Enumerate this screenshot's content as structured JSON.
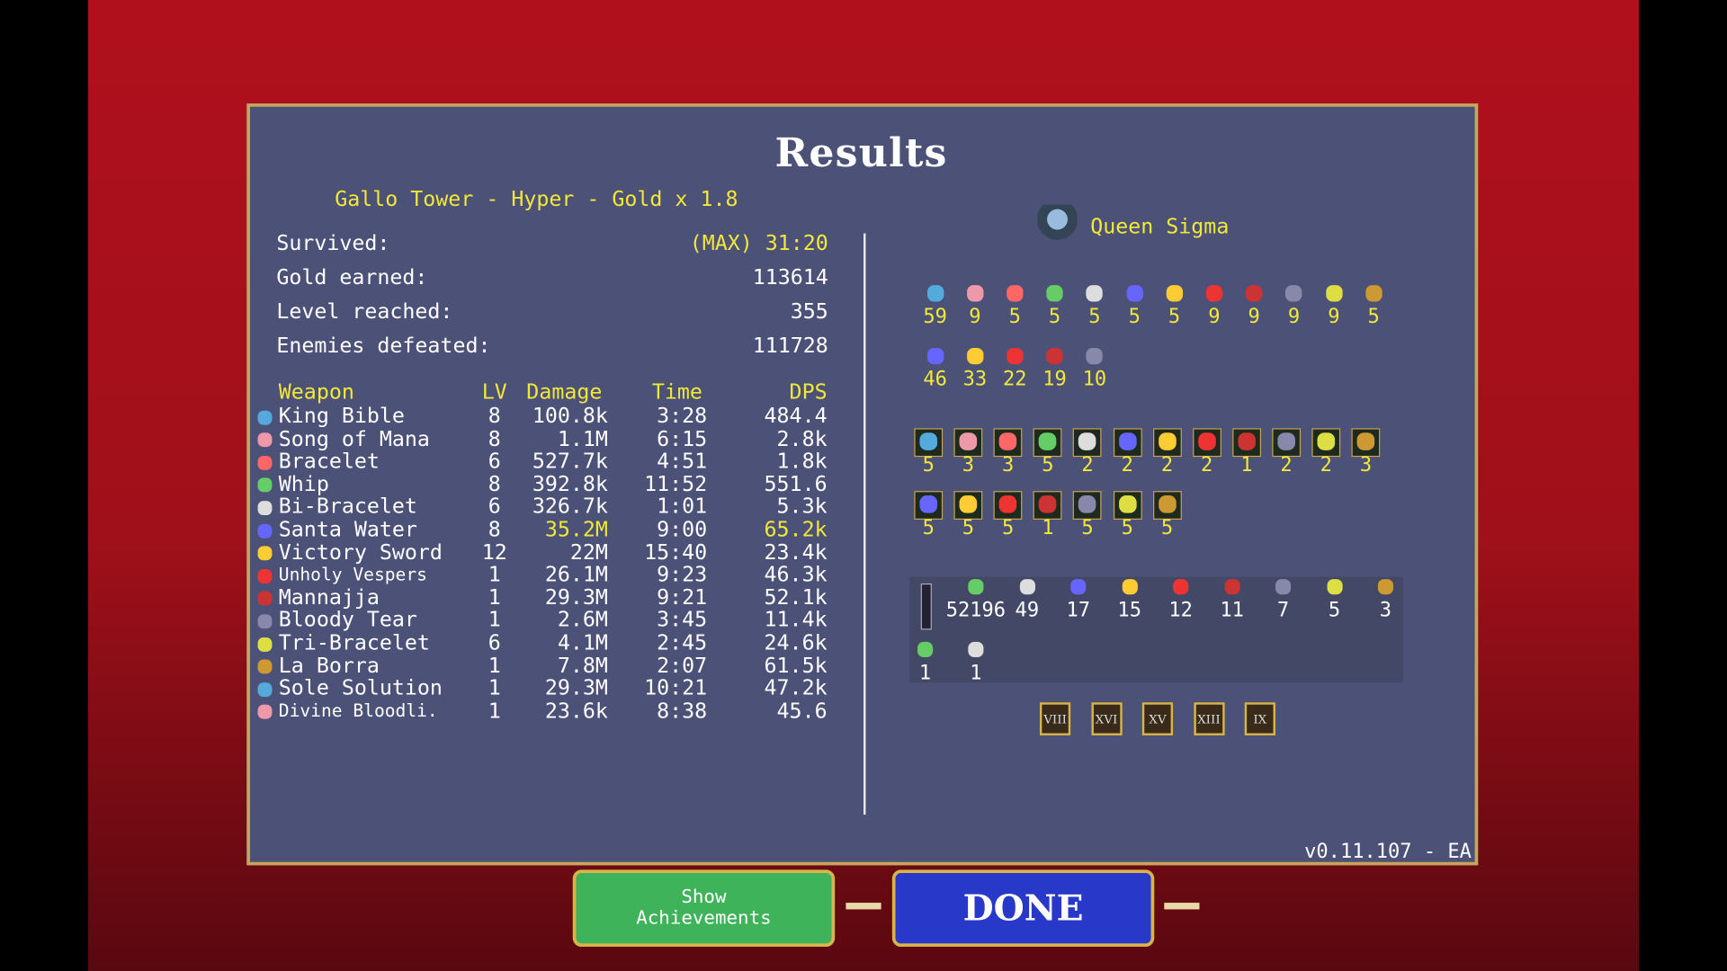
{
  "header": {
    "title": "Results",
    "subtitle": "Gallo Tower - Hyper - Gold x 1.8"
  },
  "stats": [
    {
      "label": "Survived:",
      "value": "(MAX) 31:20",
      "highlight": true
    },
    {
      "label": "Gold earned:",
      "value": "113614"
    },
    {
      "label": "Level reached:",
      "value": "355"
    },
    {
      "label": "Enemies defeated:",
      "value": "111728"
    }
  ],
  "weapons_table": {
    "columns": [
      "Weapon",
      "LV",
      "Damage",
      "Time",
      "DPS"
    ],
    "rows": [
      [
        "King Bible",
        "8",
        "100.8k",
        "3:28",
        "484.4"
      ],
      [
        "Song of Mana",
        "8",
        "1.1M",
        "6:15",
        "2.8k"
      ],
      [
        "Bracelet",
        "6",
        "527.7k",
        "4:51",
        "1.8k"
      ],
      [
        "Whip",
        "8",
        "392.8k",
        "11:52",
        "551.6"
      ],
      [
        "Bi-Bracelet",
        "6",
        "326.7k",
        "1:01",
        "5.3k"
      ],
      [
        "Santa Water",
        "8",
        "35.2M",
        "9:00",
        "65.2k"
      ],
      [
        "Victory Sword",
        "12",
        "22M",
        "15:40",
        "23.4k"
      ],
      [
        "Unholy Vespers",
        "1",
        "26.1M",
        "9:23",
        "46.3k"
      ],
      [
        "Mannajja",
        "1",
        "29.3M",
        "9:21",
        "52.1k"
      ],
      [
        "Bloody Tear",
        "1",
        "2.6M",
        "3:45",
        "11.4k"
      ],
      [
        "Tri-Bracelet",
        "6",
        "4.1M",
        "2:45",
        "24.6k"
      ],
      [
        "La Borra",
        "1",
        "7.8M",
        "2:07",
        "61.5k"
      ],
      [
        "Sole Solution",
        "1",
        "29.3M",
        "10:21",
        "47.2k"
      ],
      [
        "Divine Bloodli.",
        "1",
        "23.6k",
        "8:38",
        "45.6"
      ]
    ],
    "highlight_rows": [
      5
    ]
  },
  "character": {
    "name": "Queen Sigma"
  },
  "item_counts": [
    [
      59,
      9,
      5,
      5,
      5,
      5,
      5,
      9,
      9,
      9,
      9,
      5
    ],
    [
      46,
      33,
      22,
      19,
      10
    ]
  ],
  "weapon_levels": [
    [
      5,
      3,
      3,
      5,
      2,
      2,
      2,
      2,
      1,
      2,
      2,
      3
    ],
    [
      5,
      5,
      5,
      1,
      5,
      5,
      5
    ]
  ],
  "pickups": [
    [
      52196,
      49,
      17,
      15,
      12,
      11,
      7,
      5,
      3
    ],
    [
      1,
      1
    ]
  ],
  "arcana": [
    "VIII",
    "XVI",
    "XV",
    "XIII",
    "IX"
  ],
  "version": "v0.11.107 - EA",
  "buttons": [
    "Show Achievements",
    "DONE"
  ]
}
